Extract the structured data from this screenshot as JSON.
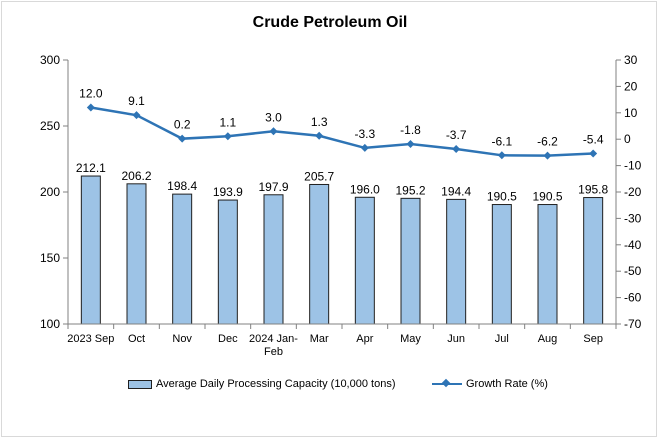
{
  "chart_data": {
    "type": "bar",
    "title": "Crude Petroleum Oil",
    "categories": [
      "2023 Sep",
      "Oct",
      "Nov",
      "Dec",
      "2024 Jan-Feb",
      "Mar",
      "Apr",
      "May",
      "Jun",
      "Jul",
      "Aug",
      "Sep"
    ],
    "series": [
      {
        "name": "Average Daily Processing Capacity (10,000 tons)",
        "type": "bar",
        "axis": "left",
        "color": "#9dc3e6",
        "values": [
          212.1,
          206.2,
          198.4,
          193.9,
          197.9,
          205.7,
          196.0,
          195.2,
          194.4,
          190.5,
          190.5,
          195.8
        ],
        "labels": [
          "212.1",
          "206.2",
          "198.4",
          "193.9",
          "197.9",
          "205.7",
          "196.0",
          "195.2",
          "194.4",
          "190.5",
          "190.5",
          "195.8"
        ]
      },
      {
        "name": "Growth Rate (%)",
        "type": "line",
        "axis": "right",
        "color": "#2e74b5",
        "values": [
          12.0,
          9.1,
          0.2,
          1.1,
          3.0,
          1.3,
          -3.3,
          -1.8,
          -3.7,
          -6.1,
          -6.2,
          -5.4
        ],
        "labels": [
          "12.0",
          "9.1",
          "0.2",
          "1.1",
          "3.0",
          "1.3",
          "-3.3",
          "-1.8",
          "-3.7",
          "-6.1",
          "-6.2",
          "-5.4"
        ]
      }
    ],
    "y_left": {
      "min": 100,
      "max": 300,
      "ticks": [
        "100",
        "150",
        "200",
        "250",
        "300"
      ]
    },
    "y_right": {
      "min": -70,
      "max": 30,
      "ticks": [
        "30",
        "20",
        "10",
        "0",
        "-10",
        "-20",
        "-30",
        "-40",
        "-50",
        "-60",
        "-70"
      ]
    },
    "grid": false,
    "legend_position": "bottom"
  }
}
